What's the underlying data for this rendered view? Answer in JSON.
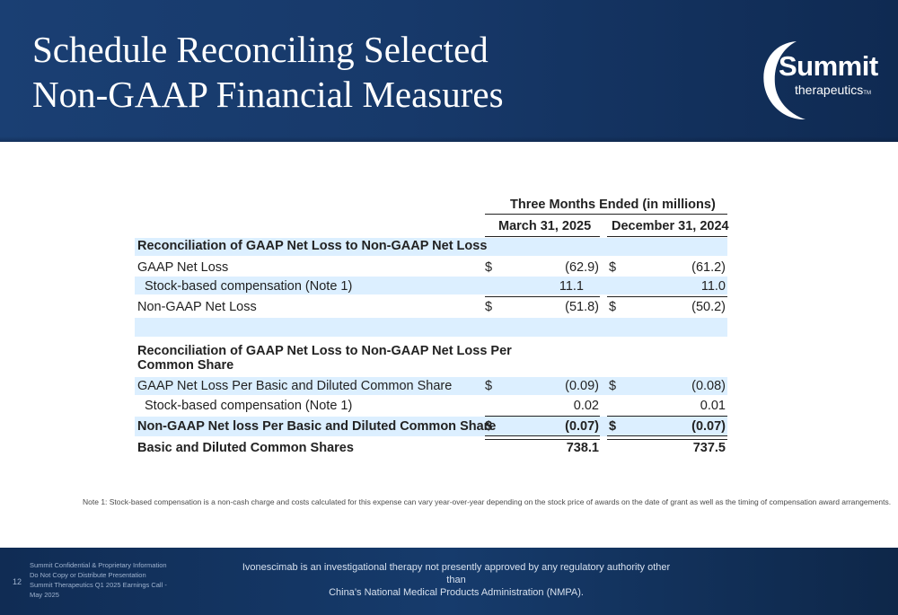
{
  "header": {
    "title_line1": "Schedule Reconciling Selected",
    "title_line2": "Non-GAAP Financial Measures",
    "logo_word": "Summit",
    "logo_sub": "therapeutics",
    "logo_tm": "TM"
  },
  "table": {
    "group_header": "Three Months Ended (in millions)",
    "col1": "March 31, 2025",
    "col2": "December 31, 2024",
    "section1_title": "Reconciliation of GAAP Net Loss to Non-GAAP Net Loss",
    "section2_title_line1": "Reconciliation of GAAP Net Loss to Non-GAAP Net Loss Per",
    "section2_title_line2": "Common Share",
    "currency": "$",
    "rows": [
      {
        "label": "GAAP Net Loss",
        "v1": "(62.9)",
        "v2": "(61.2)"
      },
      {
        "label": "Stock-based compensation (Note 1)",
        "v1": "11.1",
        "v2": "11.0"
      },
      {
        "label": "Non-GAAP Net Loss",
        "v1": "(51.8)",
        "v2": "(50.2)"
      },
      {
        "label": "GAAP Net Loss Per Basic and Diluted Common Share",
        "v1": "(0.09)",
        "v2": "(0.08)"
      },
      {
        "label": "Stock-based compensation (Note 1)",
        "v1": "0.02",
        "v2": "0.01"
      },
      {
        "label": "Non-GAAP Net loss Per Basic and Diluted Common Share",
        "v1": "(0.07)",
        "v2": "(0.07)"
      },
      {
        "label": "Basic and Diluted Common Shares",
        "v1": "738.1",
        "v2": "737.5"
      }
    ]
  },
  "note": "Note 1: Stock-based compensation is a non-cash charge and costs calculated for this expense can vary year-over-year depending on the stock price of awards on the date of grant as well as the timing of compensation award arrangements.",
  "footer": {
    "page_number": "12",
    "confidential": [
      "Summit Confidential & Proprietary Information",
      "Do Not Copy or Distribute Presentation",
      "Summit Therapeutics Q1 2025 Earnings Call -",
      "May 2025"
    ],
    "disclaimer_line1": "Ivonescimab is an investigational therapy not presently approved by any regulatory authority other than",
    "disclaimer_line2": "China’s National Medical Products Administration (NMPA)."
  }
}
